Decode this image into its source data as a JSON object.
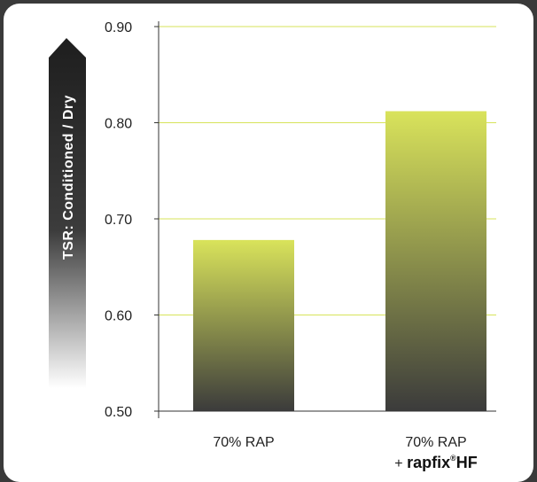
{
  "colors": {
    "background": "#3a3a3a",
    "panel": "#ffffff",
    "gridline": "#d7e35a",
    "bar_top": "#d9e35b",
    "bar_bottom": "#3b3b3b",
    "axis": "#333333"
  },
  "chart_data": {
    "type": "bar",
    "categories": [
      "70% RAP",
      "70% RAP"
    ],
    "category_suffix": [
      "",
      "+ rapfix®HF"
    ],
    "brand": {
      "prefix": "+ ",
      "name": "rapfix",
      "mark": "®",
      "suffix": "HF"
    },
    "values": [
      0.678,
      0.812
    ],
    "ylabel": "TSR: Conditioned / Dry",
    "xlabel": "",
    "title": "",
    "ylim": [
      0.5,
      0.9
    ],
    "yticks": [
      "0.90",
      "0.80",
      "0.70",
      "0.60",
      "0.50"
    ],
    "ytick_values": [
      0.9,
      0.8,
      0.7,
      0.6,
      0.5
    ],
    "grid": true,
    "legend": "none"
  }
}
